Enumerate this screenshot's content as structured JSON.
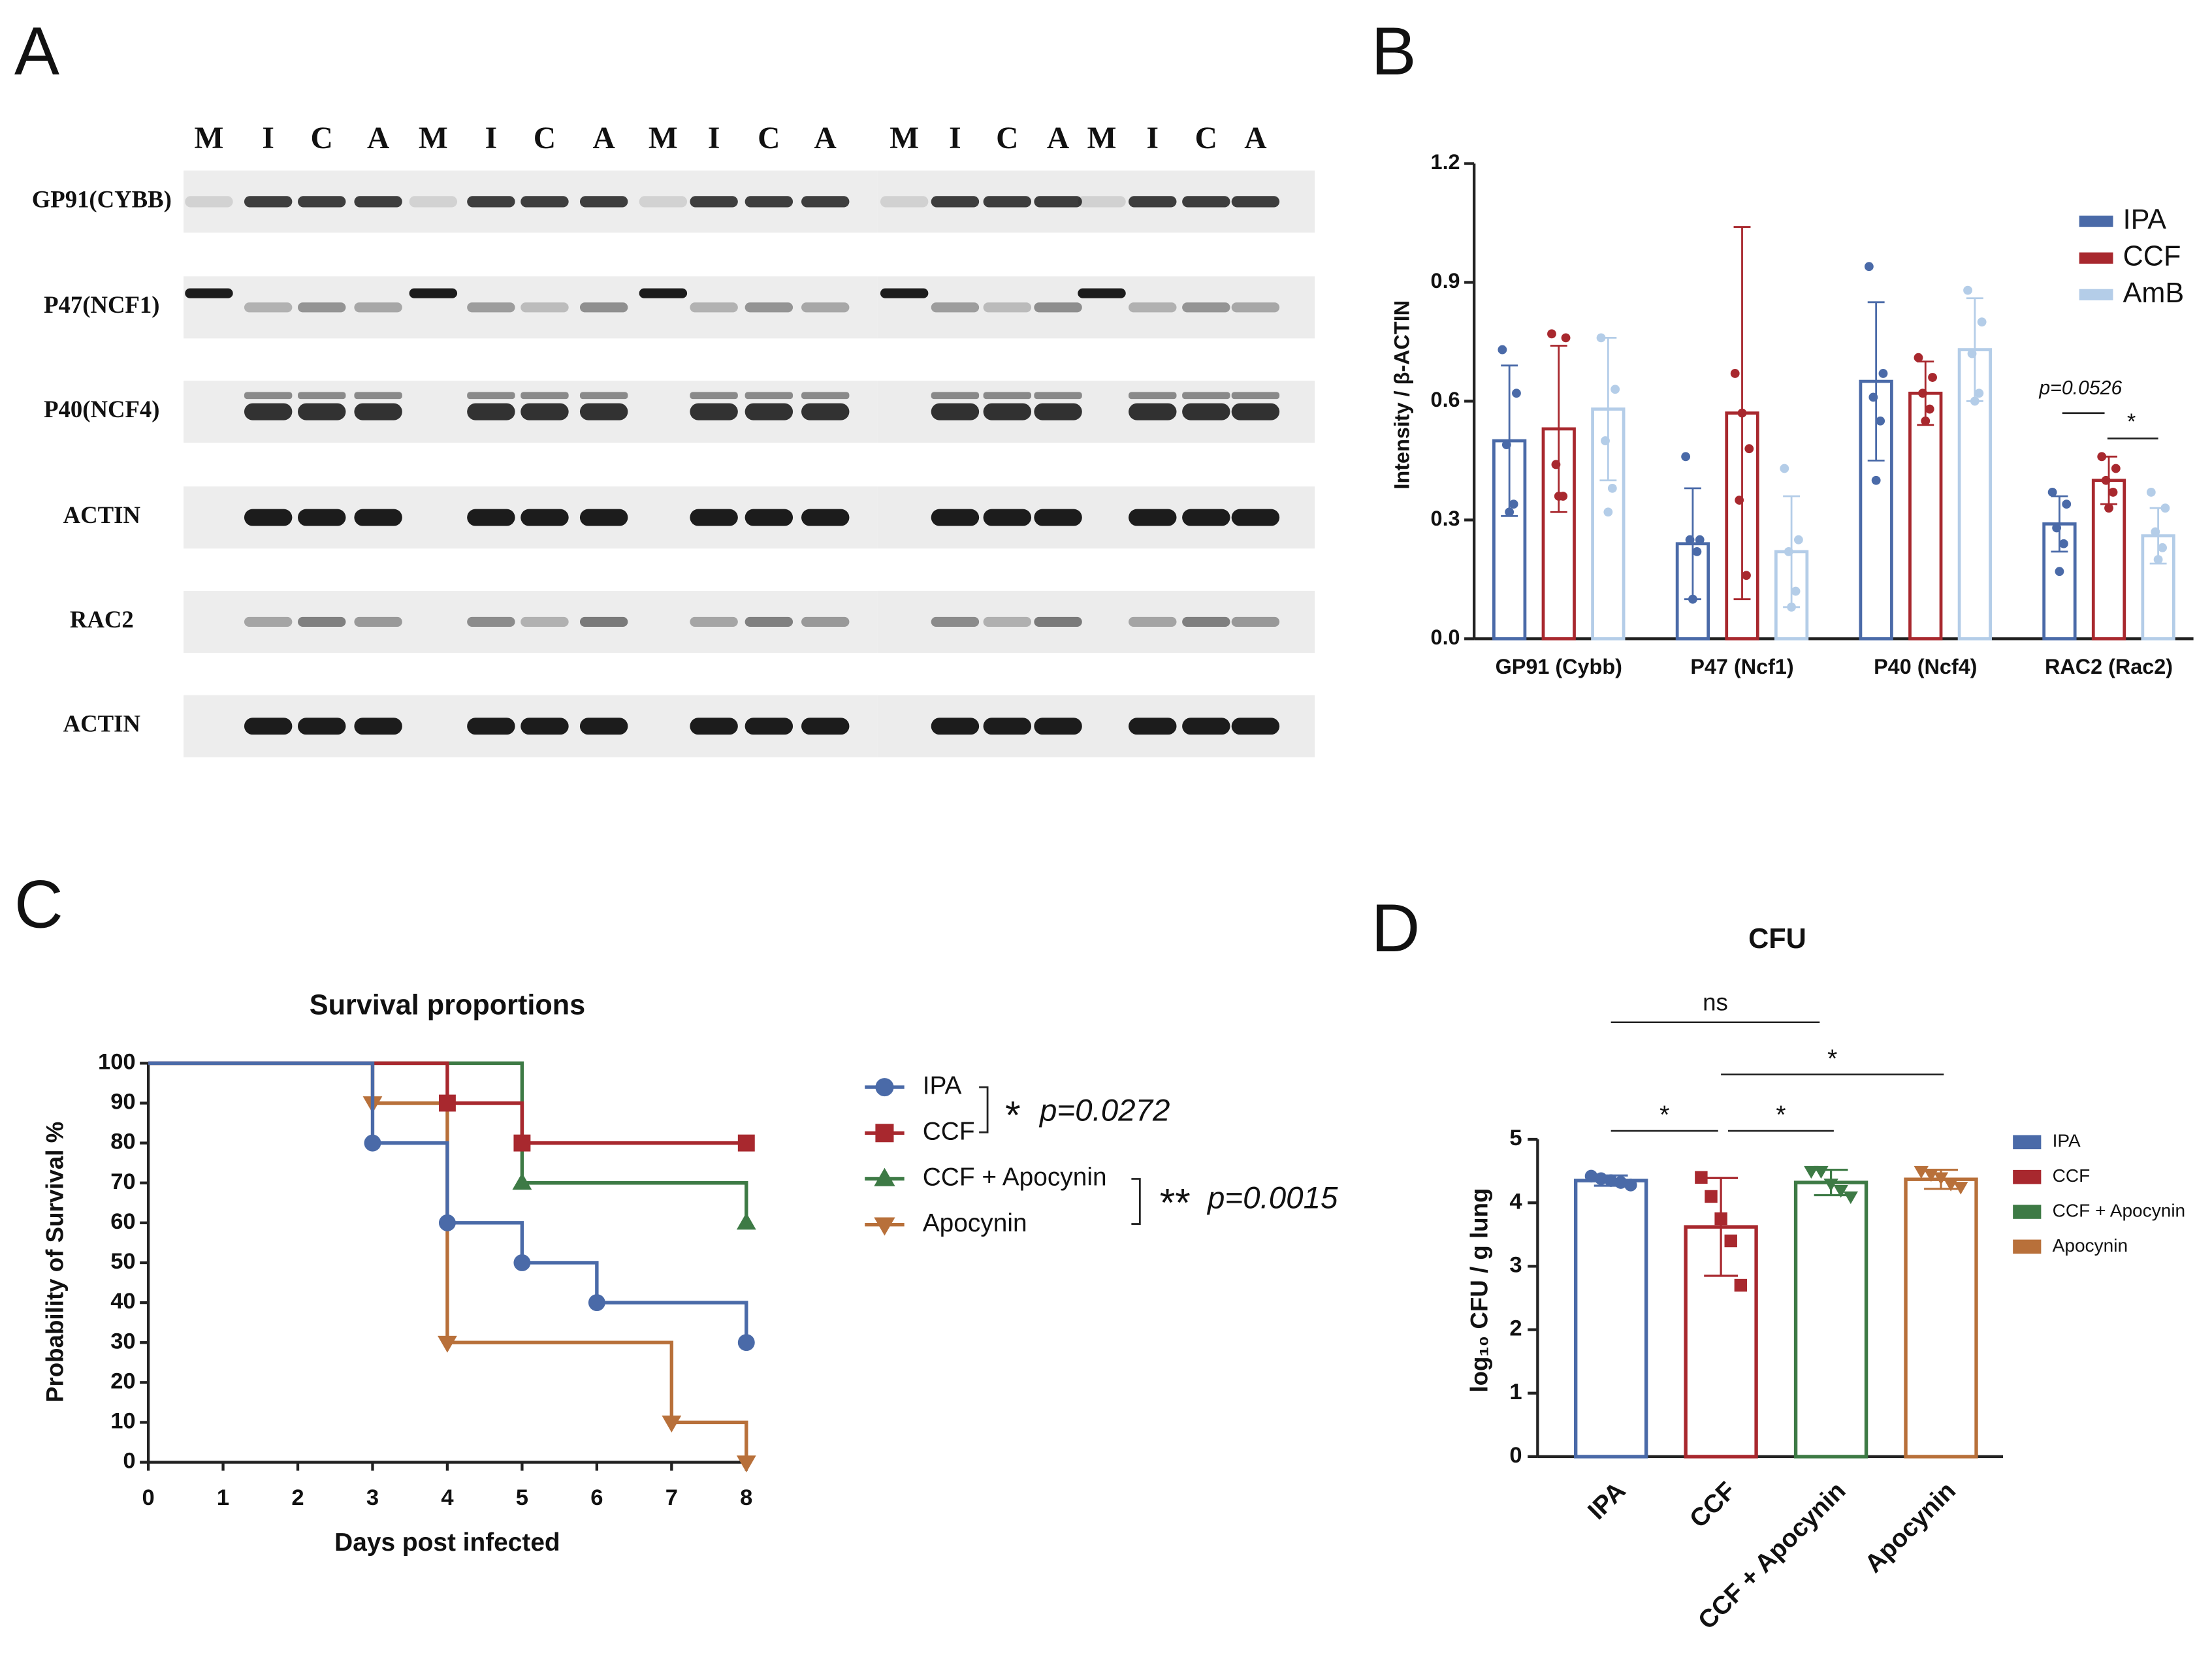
{
  "panel_labels": [
    "A",
    "B",
    "C",
    "D"
  ],
  "blot": {
    "lanes": [
      "M",
      "I",
      "C",
      "A",
      "M",
      "I",
      "C",
      "A",
      "M",
      "I",
      "C",
      "A",
      "M",
      "I",
      "C",
      "A",
      "M",
      "I",
      "C",
      "A"
    ],
    "rows": [
      "GP91(CYBB)",
      "P47(NCF1)",
      "P40(NCF4)",
      "ACTIN",
      "RAC2",
      "ACTIN"
    ]
  },
  "chart_data": [
    {
      "type": "bar",
      "y_label": "Intensity / β-ACTIN",
      "categories": [
        "GP91 (Cybb)",
        "P47 (Ncf1)",
        "P40 (Ncf4)",
        "RAC2 (Rac2)"
      ],
      "series": [
        {
          "name": "IPA",
          "color": "#4a6aa8",
          "values": [
            0.5,
            0.24,
            0.65,
            0.29
          ],
          "errors": [
            0.19,
            0.14,
            0.2,
            0.07
          ],
          "points": [
            [
              0.73,
              0.62,
              0.49,
              0.34,
              0.32
            ],
            [
              0.46,
              0.25,
              0.25,
              0.22,
              0.1
            ],
            [
              0.94,
              0.67,
              0.61,
              0.55,
              0.4
            ],
            [
              0.37,
              0.34,
              0.28,
              0.24,
              0.17
            ]
          ]
        },
        {
          "name": "CCF",
          "color": "#a8282e",
          "values": [
            0.53,
            0.57,
            0.62,
            0.4
          ],
          "errors": [
            0.21,
            0.47,
            0.08,
            0.06
          ],
          "points": [
            [
              0.77,
              0.76,
              0.44,
              0.36,
              0.36
            ],
            [
              0.67,
              0.48,
              0.35,
              0.16,
              0.57
            ],
            [
              0.71,
              0.66,
              0.62,
              0.58,
              0.55
            ],
            [
              0.46,
              0.43,
              0.4,
              0.37,
              0.33
            ]
          ]
        },
        {
          "name": "AmB",
          "color": "#b4cde8",
          "values": [
            0.58,
            0.22,
            0.73,
            0.26
          ],
          "errors": [
            0.18,
            0.14,
            0.13,
            0.07
          ],
          "points": [
            [
              0.76,
              0.63,
              0.5,
              0.38,
              0.32
            ],
            [
              0.43,
              0.25,
              0.22,
              0.12,
              0.08
            ],
            [
              0.88,
              0.8,
              0.72,
              0.62,
              0.6
            ],
            [
              0.37,
              0.33,
              0.27,
              0.23,
              0.2
            ]
          ]
        }
      ],
      "ylim": [
        0,
        1.2
      ],
      "yticks": [
        {
          "value": 0,
          "label": "0.0"
        },
        0.3,
        0.6,
        0.9,
        1.2
      ],
      "legend": "top-right",
      "annotations": [
        "p=0.0526",
        "*"
      ]
    },
    {
      "type": "step",
      "title": "Survival proportions",
      "x_label": "Days post infected",
      "y_label": "Probability of Survival %",
      "series": [
        {
          "name": "IPA",
          "color": "#4a6aa8",
          "marker": "circle",
          "x": [
            0,
            3,
            4,
            5,
            6,
            8
          ],
          "values": [
            100,
            80,
            60,
            50,
            40,
            30
          ]
        },
        {
          "name": "CCF",
          "color": "#a8282e",
          "marker": "square",
          "x": [
            0,
            4,
            5,
            8
          ],
          "values": [
            100,
            90,
            80,
            80
          ]
        },
        {
          "name": "CCF + Apocynin",
          "color": "#3d7a45",
          "marker": "triangle-up",
          "x": [
            0,
            5,
            8
          ],
          "values": [
            100,
            70,
            60
          ]
        },
        {
          "name": "Apocynin",
          "color": "#b8703a",
          "marker": "triangle-down",
          "x": [
            0,
            3,
            4,
            7,
            8
          ],
          "values": [
            100,
            90,
            30,
            10,
            0
          ]
        }
      ],
      "xlim": [
        0,
        8
      ],
      "xticks": [
        0,
        1,
        2,
        3,
        4,
        5,
        6,
        7,
        8
      ],
      "ylim": [
        0,
        100
      ],
      "yticks": [
        0,
        10,
        20,
        30,
        40,
        50,
        60,
        70,
        80,
        90,
        100
      ],
      "legend": "right",
      "comparisons": [
        {
          "stars": "*",
          "p": "p=0.0272"
        },
        {
          "stars": "**",
          "p": "p=0.0015"
        }
      ]
    },
    {
      "type": "bar",
      "title": "CFU",
      "y_label": "log₁₀ CFU / g lung",
      "categories": [
        "IPA",
        "CCF",
        "CCF + Apocynin",
        "Apocynin"
      ],
      "colors": [
        "#4a6aa8",
        "#a8282e",
        "#3d7a45",
        "#b8703a"
      ],
      "values": [
        4.35,
        3.62,
        4.32,
        4.37
      ],
      "errors": [
        0.08,
        0.77,
        0.2,
        0.15
      ],
      "points": [
        [
          4.42,
          4.38,
          4.35,
          4.32,
          4.28
        ],
        [
          4.4,
          4.1,
          3.75,
          3.4,
          2.7
        ],
        [
          4.5,
          4.5,
          4.3,
          4.2,
          4.1
        ],
        [
          4.5,
          4.45,
          4.4,
          4.3,
          4.25
        ]
      ],
      "ylim": [
        0,
        5
      ],
      "yticks": [
        0,
        1,
        2,
        3,
        4,
        5
      ],
      "legend": "right",
      "significance": [
        "ns",
        "*",
        "*",
        "*"
      ]
    }
  ]
}
